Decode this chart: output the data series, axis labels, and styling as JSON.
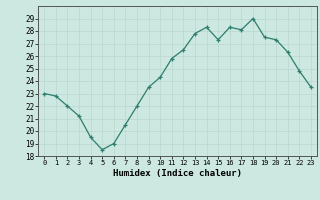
{
  "x": [
    0,
    1,
    2,
    3,
    4,
    5,
    6,
    7,
    8,
    9,
    10,
    11,
    12,
    13,
    14,
    15,
    16,
    17,
    18,
    19,
    20,
    21,
    22,
    23
  ],
  "y": [
    23,
    22.8,
    22,
    21.2,
    19.5,
    18.5,
    19,
    20.5,
    22,
    23.5,
    24.3,
    25.8,
    26.5,
    27.8,
    28.3,
    27.3,
    28.3,
    28.1,
    29,
    27.5,
    27.3,
    26.3,
    24.8,
    23.5
  ],
  "line_color": "#2e7d6e",
  "marker": "+",
  "bg_color": "#cce8e0",
  "grid_color": "#b8d8d0",
  "xlabel": "Humidex (Indice chaleur)",
  "ylim": [
    18,
    30
  ],
  "yticks": [
    18,
    19,
    20,
    21,
    22,
    23,
    24,
    25,
    26,
    27,
    28,
    29
  ],
  "xlim": [
    -0.5,
    23.5
  ],
  "xticks": [
    0,
    1,
    2,
    3,
    4,
    5,
    6,
    7,
    8,
    9,
    10,
    11,
    12,
    13,
    14,
    15,
    16,
    17,
    18,
    19,
    20,
    21,
    22,
    23
  ]
}
